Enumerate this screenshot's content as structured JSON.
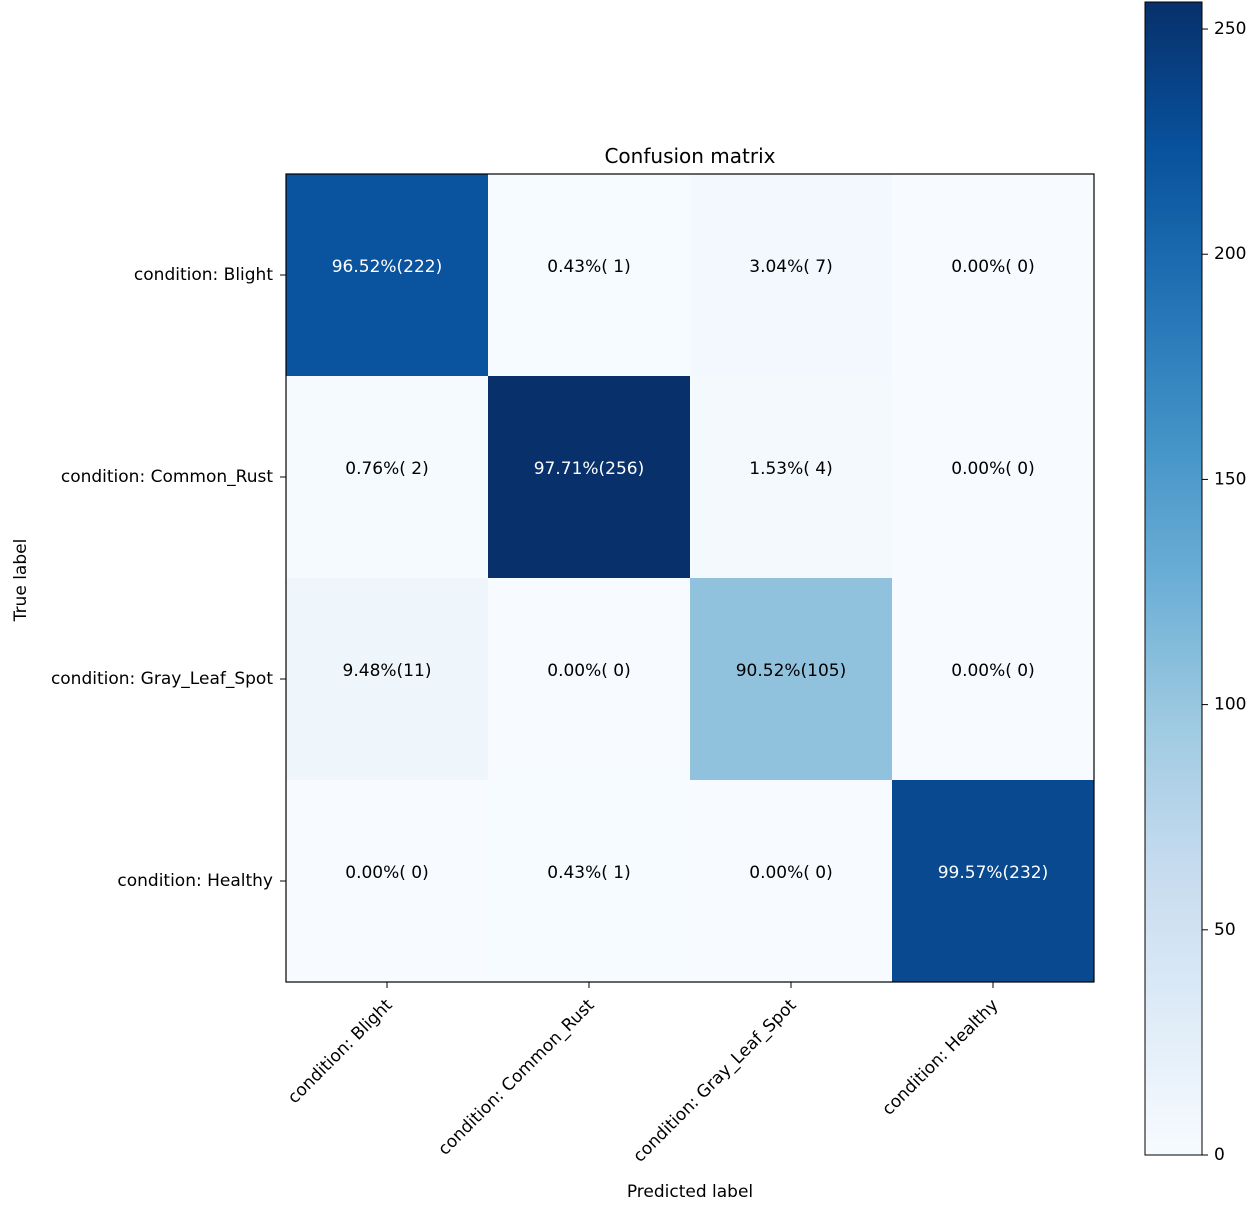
{
  "chart_data": {
    "type": "heatmap",
    "title": "Confusion matrix",
    "xlabel": "Predicted label",
    "ylabel": "True label",
    "x_labels": [
      "condition: Blight",
      "condition: Common_Rust",
      "condition: Gray_Leaf_Spot",
      "condition: Healthy"
    ],
    "y_labels": [
      "condition: Blight",
      "condition: Common_Rust",
      "condition: Gray_Leaf_Spot",
      "condition: Healthy"
    ],
    "values": [
      [
        222,
        1,
        7,
        0
      ],
      [
        2,
        256,
        4,
        0
      ],
      [
        11,
        0,
        105,
        0
      ],
      [
        0,
        1,
        0,
        232
      ]
    ],
    "cell_labels": [
      [
        "96.52%(222)",
        "0.43%( 1)",
        "3.04%( 7)",
        "0.00%( 0)"
      ],
      [
        "0.76%( 2)",
        "97.71%(256)",
        "1.53%( 4)",
        "0.00%( 0)"
      ],
      [
        "9.48%(11)",
        "0.00%( 0)",
        "90.52%(105)",
        "0.00%( 0)"
      ],
      [
        "0.00%( 0)",
        "0.43%( 1)",
        "0.00%( 0)",
        "99.57%(232)"
      ]
    ],
    "colormap": "Blues",
    "colorbar": {
      "range": [
        0,
        256
      ],
      "ticks": [
        0,
        50,
        100,
        150,
        200,
        250
      ],
      "tick_labels": [
        "0",
        "50",
        "100",
        "150",
        "200",
        "250"
      ]
    },
    "grid": false,
    "legend": "colorbar-right"
  }
}
